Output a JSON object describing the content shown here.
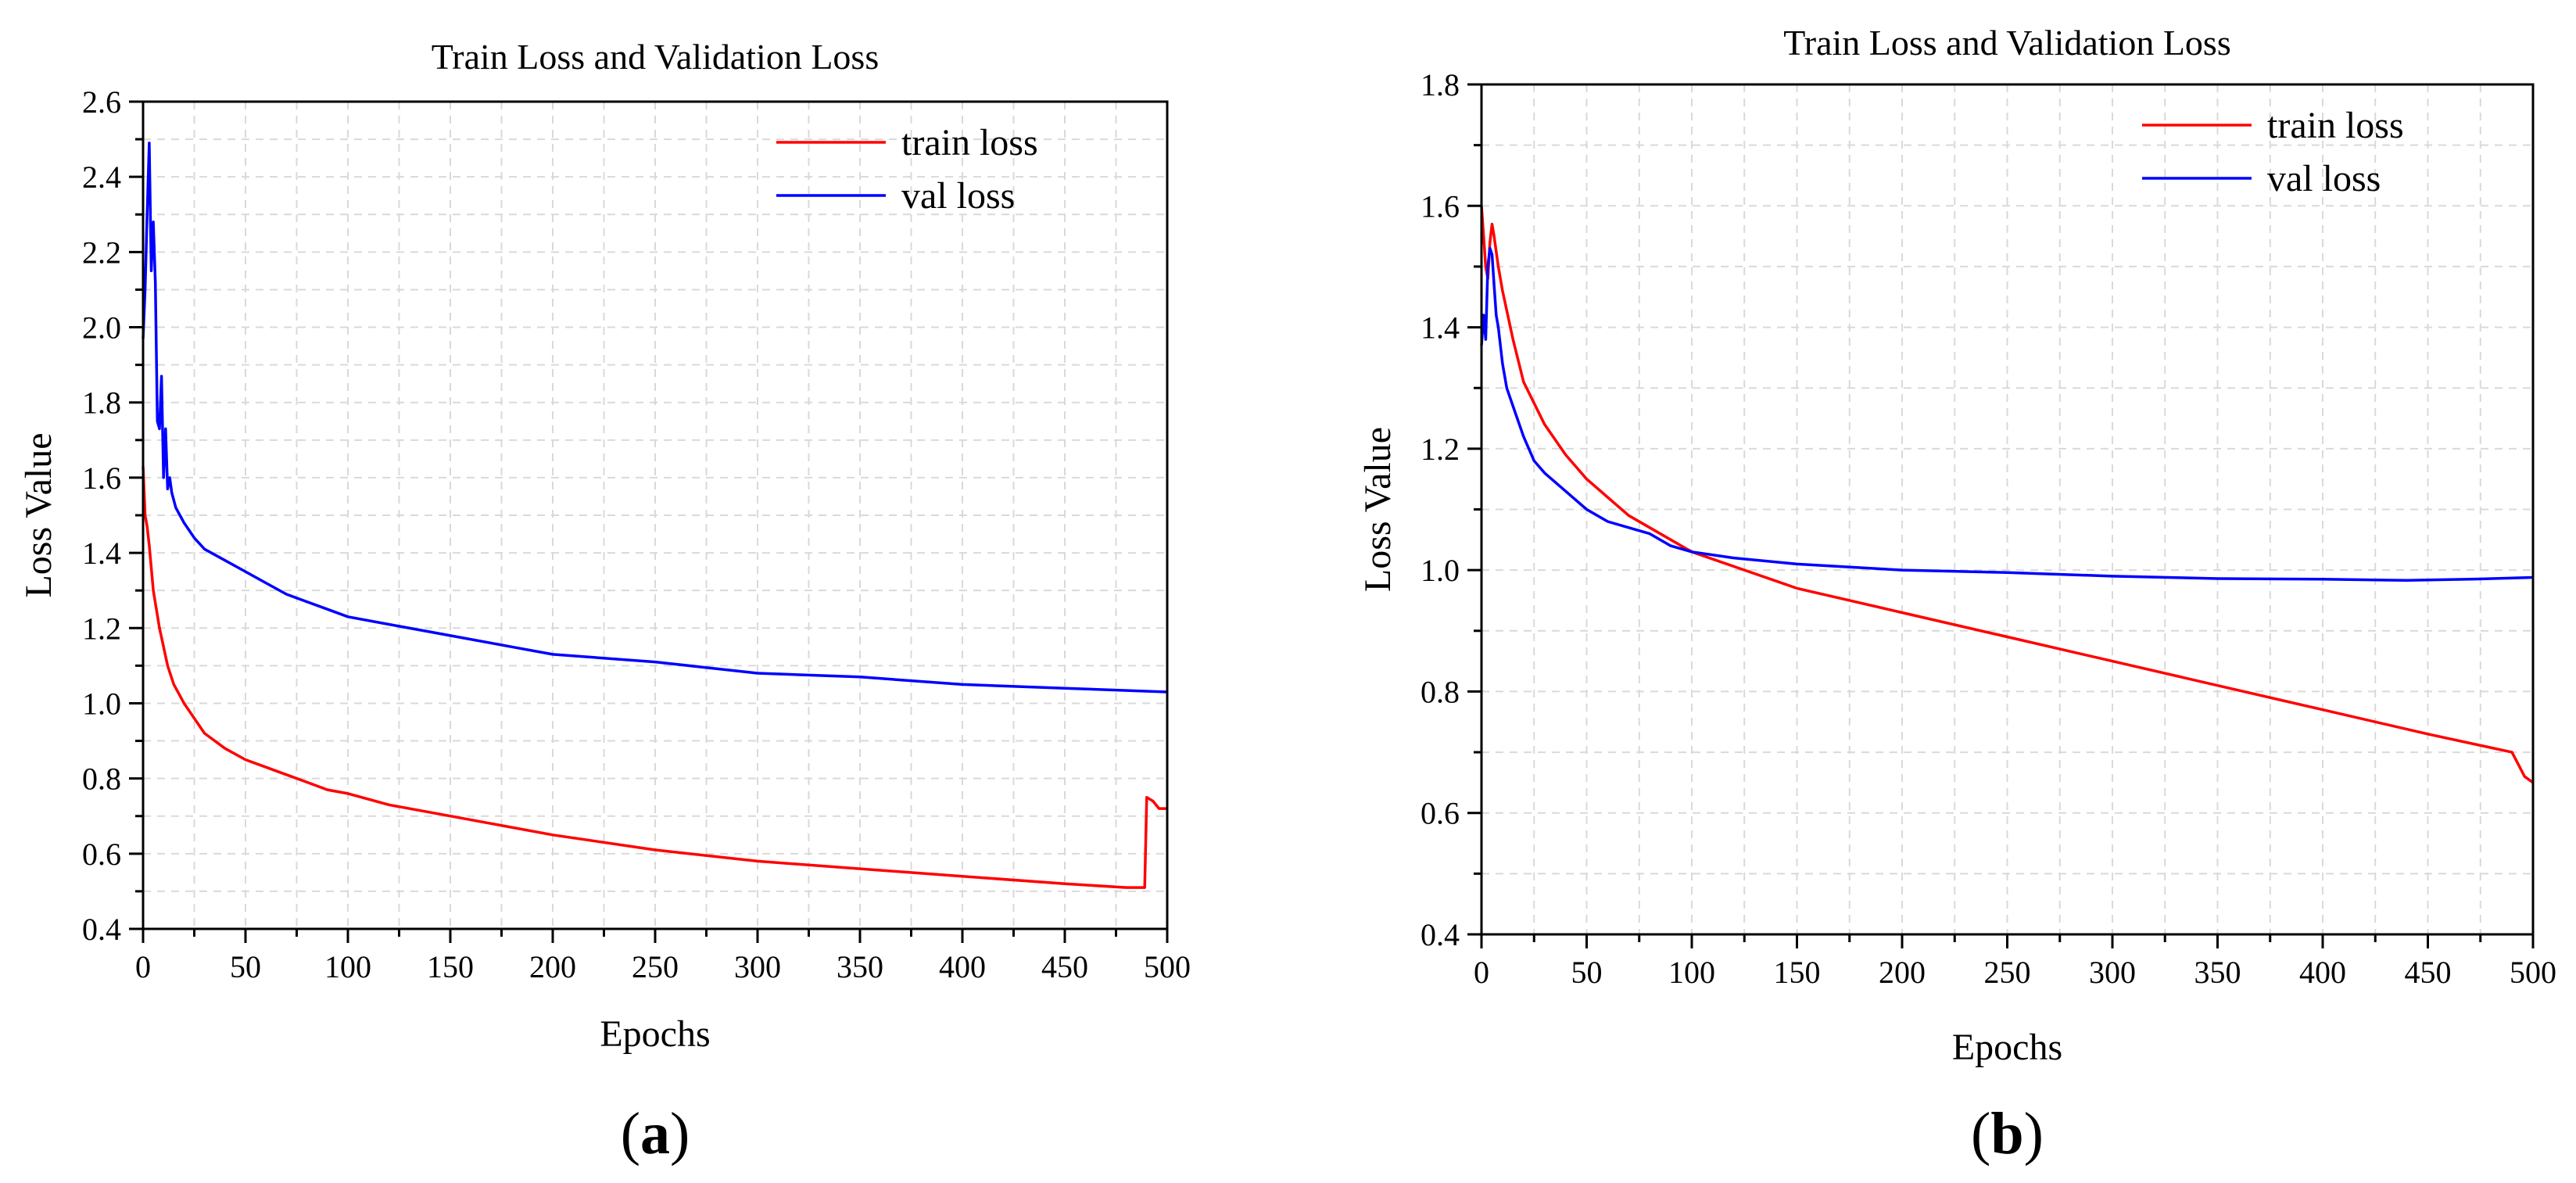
{
  "chart_data": [
    {
      "type": "line",
      "panel_label": "a",
      "title": "Train Loss and Validation Loss",
      "xlabel": "Epochs",
      "ylabel": "Loss Value",
      "xlim": [
        0,
        500
      ],
      "ylim": [
        0.4,
        2.6
      ],
      "xticks": [
        0,
        50,
        100,
        150,
        200,
        250,
        300,
        350,
        400,
        450,
        500
      ],
      "yticks": [
        0.4,
        0.6,
        0.8,
        1.0,
        1.2,
        1.4,
        1.6,
        1.8,
        2.0,
        2.2,
        2.4,
        2.6
      ],
      "xtick_labels": [
        "0",
        "50",
        "100",
        "150",
        "200",
        "250",
        "300",
        "350",
        "400",
        "450",
        "500"
      ],
      "ytick_labels": [
        "0.4",
        "0.6",
        "0.8",
        "1.0",
        "1.2",
        "1.4",
        "1.6",
        "1.8",
        "2.0",
        "2.2",
        "2.4",
        "2.6"
      ],
      "grid": true,
      "legend_position": "top-right",
      "series": [
        {
          "name": "train loss",
          "color": "#ff0000",
          "x": [
            0,
            1,
            2,
            3,
            5,
            8,
            10,
            12,
            15,
            18,
            20,
            25,
            30,
            40,
            50,
            60,
            70,
            80,
            90,
            100,
            120,
            150,
            200,
            250,
            300,
            350,
            400,
            450,
            480,
            487,
            489,
            490,
            493,
            496,
            500
          ],
          "y": [
            1.63,
            1.5,
            1.47,
            1.42,
            1.3,
            1.2,
            1.15,
            1.1,
            1.05,
            1.02,
            1.0,
            0.96,
            0.92,
            0.88,
            0.85,
            0.83,
            0.81,
            0.79,
            0.77,
            0.76,
            0.73,
            0.7,
            0.65,
            0.61,
            0.58,
            0.56,
            0.54,
            0.52,
            0.51,
            0.51,
            0.51,
            0.75,
            0.74,
            0.72,
            0.72
          ]
        },
        {
          "name": "val loss",
          "color": "#0000ff",
          "x": [
            0,
            1,
            2,
            3,
            4,
            5,
            6,
            7,
            8,
            9,
            10,
            11,
            12,
            13,
            14,
            16,
            20,
            25,
            30,
            40,
            50,
            60,
            70,
            80,
            90,
            100,
            120,
            150,
            180,
            200,
            250,
            300,
            350,
            400,
            450,
            500
          ],
          "y": [
            1.97,
            2.1,
            2.3,
            2.49,
            2.15,
            2.28,
            2.12,
            1.75,
            1.73,
            1.87,
            1.6,
            1.73,
            1.57,
            1.6,
            1.56,
            1.52,
            1.48,
            1.44,
            1.41,
            1.38,
            1.35,
            1.32,
            1.29,
            1.27,
            1.25,
            1.23,
            1.21,
            1.18,
            1.15,
            1.13,
            1.11,
            1.08,
            1.07,
            1.05,
            1.04,
            1.03
          ]
        }
      ]
    },
    {
      "type": "line",
      "panel_label": "b",
      "title": "Train Loss and Validation Loss",
      "xlabel": "Epochs",
      "ylabel": "Loss Value",
      "xlim": [
        0,
        500
      ],
      "ylim": [
        0.4,
        1.8
      ],
      "xticks": [
        0,
        50,
        100,
        150,
        200,
        250,
        300,
        350,
        400,
        450,
        500
      ],
      "yticks": [
        0.4,
        0.6,
        0.8,
        1.0,
        1.2,
        1.4,
        1.6,
        1.8
      ],
      "xtick_labels": [
        "0",
        "50",
        "100",
        "150",
        "200",
        "250",
        "300",
        "350",
        "400",
        "450",
        "500"
      ],
      "ytick_labels": [
        "0.4",
        "0.6",
        "0.8",
        "1.0",
        "1.2",
        "1.4",
        "1.6",
        "1.8"
      ],
      "grid": true,
      "legend_position": "top-right",
      "series": [
        {
          "name": "train loss",
          "color": "#ff0000",
          "x": [
            0,
            1,
            2,
            3,
            4,
            5,
            6,
            8,
            10,
            15,
            20,
            30,
            40,
            50,
            60,
            70,
            80,
            90,
            100,
            125,
            150,
            200,
            250,
            300,
            350,
            400,
            450,
            490,
            493,
            496,
            500
          ],
          "y": [
            1.6,
            1.55,
            1.5,
            1.48,
            1.54,
            1.57,
            1.55,
            1.5,
            1.46,
            1.38,
            1.31,
            1.24,
            1.19,
            1.15,
            1.12,
            1.09,
            1.07,
            1.05,
            1.03,
            1.0,
            0.97,
            0.93,
            0.89,
            0.85,
            0.81,
            0.77,
            0.73,
            0.7,
            0.68,
            0.66,
            0.65
          ]
        },
        {
          "name": "val loss",
          "color": "#0000ff",
          "x": [
            0,
            1,
            2,
            3,
            4,
            5,
            6,
            7,
            8,
            10,
            12,
            15,
            20,
            25,
            30,
            40,
            50,
            60,
            70,
            80,
            90,
            100,
            120,
            150,
            200,
            250,
            300,
            350,
            400,
            440,
            470,
            500
          ],
          "y": [
            1.37,
            1.42,
            1.38,
            1.5,
            1.53,
            1.52,
            1.47,
            1.42,
            1.4,
            1.34,
            1.3,
            1.27,
            1.22,
            1.18,
            1.16,
            1.13,
            1.1,
            1.08,
            1.07,
            1.06,
            1.04,
            1.03,
            1.02,
            1.01,
            1.0,
            0.996,
            0.99,
            0.986,
            0.985,
            0.983,
            0.985,
            0.988
          ]
        }
      ]
    }
  ]
}
